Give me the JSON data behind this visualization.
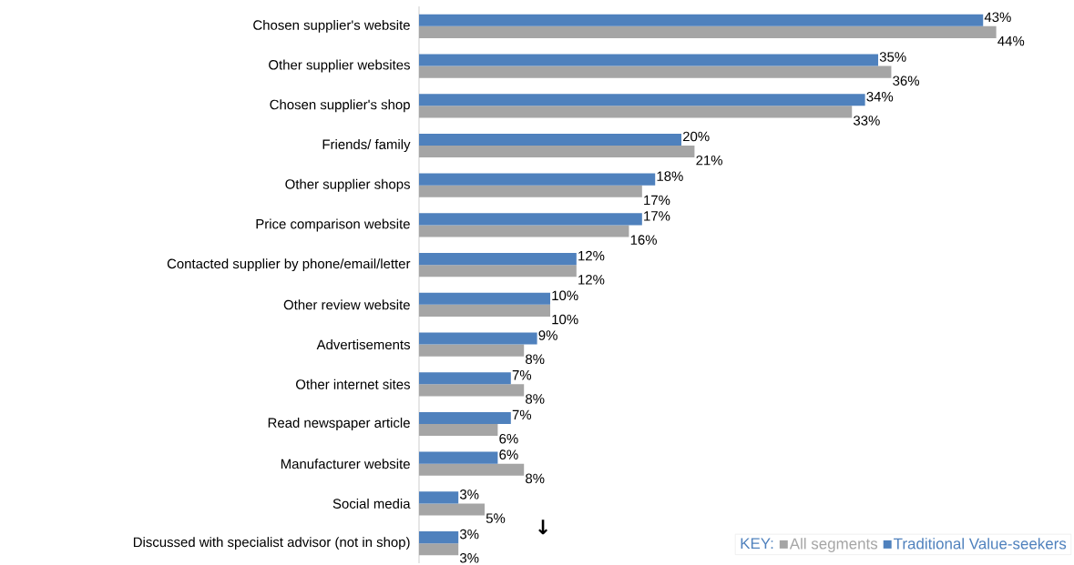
{
  "chart_data": {
    "type": "bar",
    "orientation": "horizontal",
    "categories": [
      "Chosen supplier's website",
      "Other supplier websites",
      "Chosen supplier's shop",
      "Friends/ family",
      "Other supplier shops",
      "Price comparison website",
      "Contacted supplier by phone/email/letter",
      "Other review website",
      "Advertisements",
      "Other internet sites",
      "Read newspaper article",
      "Manufacturer website",
      "Social media",
      "Discussed with specialist advisor (not in shop)"
    ],
    "series": [
      {
        "name": "All segments",
        "color": "#a5a5a5",
        "values": [
          44,
          36,
          33,
          21,
          17,
          16,
          12,
          10,
          8,
          8,
          6,
          8,
          5,
          3
        ],
        "value_labels": [
          "44%",
          "36%",
          "33%",
          "21%",
          "17%",
          "16%",
          "12%",
          "10%",
          "8%",
          "8%",
          "6%",
          "8%",
          "5%",
          "3%"
        ]
      },
      {
        "name": "Traditional Value-seekers",
        "color": "#4f81bd",
        "values": [
          43,
          35,
          34,
          20,
          18,
          17,
          12,
          10,
          9,
          7,
          7,
          6,
          3,
          3
        ],
        "value_labels": [
          "43%",
          "35%",
          "34%",
          "20%",
          "18%",
          "17%",
          "12%",
          "10%",
          "9%",
          "7%",
          "7%",
          "6%",
          "3%",
          "3%"
        ]
      }
    ],
    "legend": "bottom right",
    "legend_title": "KEY:",
    "annotations": [
      "↓"
    ]
  }
}
